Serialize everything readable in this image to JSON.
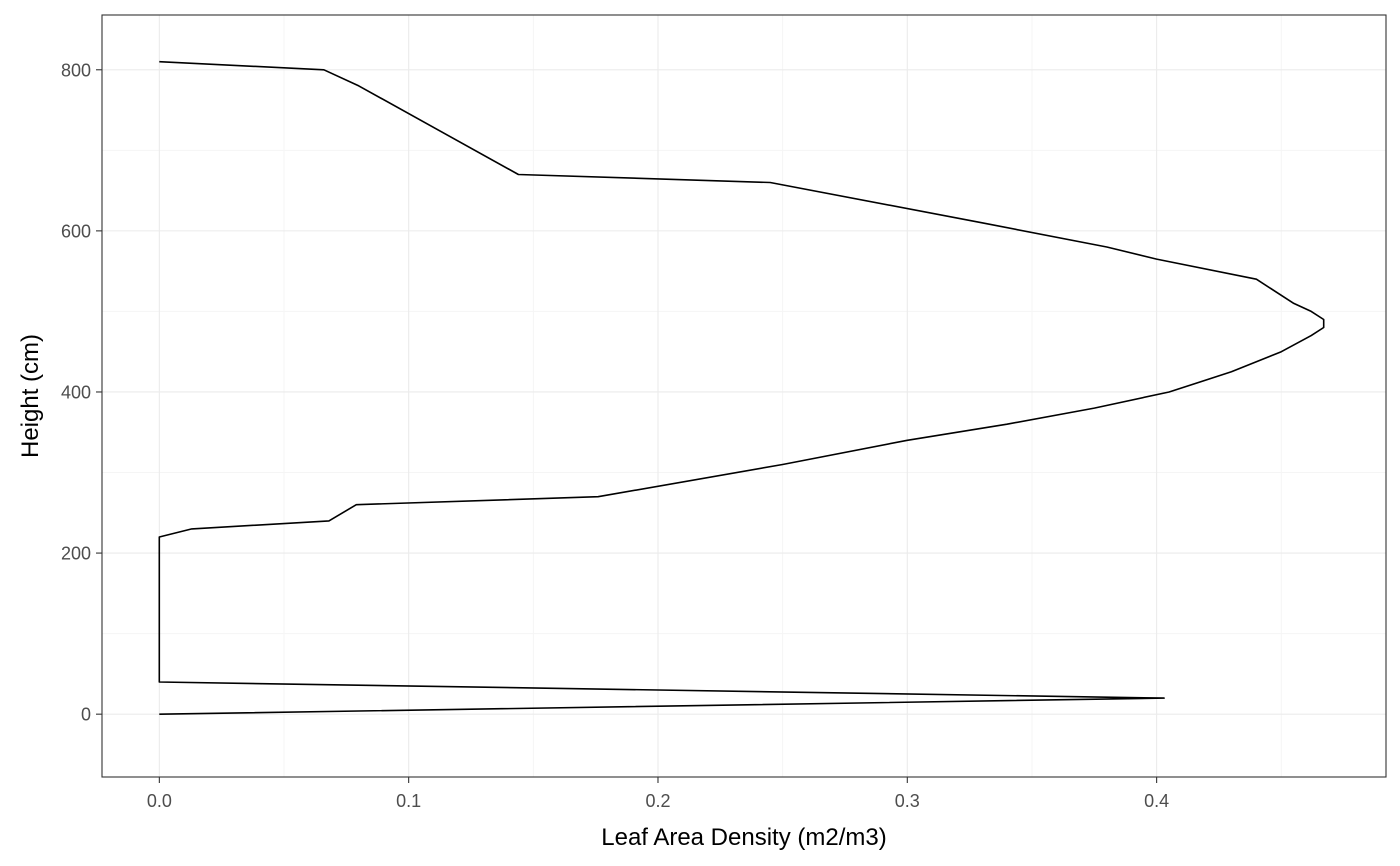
{
  "chart_data": {
    "type": "line",
    "title": "",
    "xlabel": "Leaf Area Density (m2/m3)",
    "ylabel": "Height (cm)",
    "xlim": [
      -0.023,
      0.492
    ],
    "ylim": [
      -78,
      868
    ],
    "x_ticks": [
      0.0,
      0.1,
      0.2,
      0.3,
      0.4
    ],
    "x_tick_labels": [
      "0.0",
      "0.1",
      "0.2",
      "0.3",
      "0.4"
    ],
    "y_ticks": [
      0,
      200,
      400,
      600,
      800
    ],
    "y_tick_labels": [
      "0",
      "200",
      "400",
      "600",
      "800"
    ],
    "grid": true,
    "legend": "none",
    "colors": {
      "line": "#000000",
      "grid_major": "#ebebeb",
      "grid_minor": "#f5f5f5",
      "panel_border": "#333333"
    },
    "series": [
      {
        "x": [
          0.0,
          0.403,
          0.0,
          0.0,
          0.013,
          0.068,
          0.079,
          0.176,
          0.25,
          0.3,
          0.34,
          0.375,
          0.405,
          0.43,
          0.45,
          0.462,
          0.467,
          0.467,
          0.462,
          0.455,
          0.44,
          0.4,
          0.38,
          0.33,
          0.245,
          0.144,
          0.08,
          0.066,
          0.0
        ],
        "y": [
          0,
          20,
          40,
          220,
          230,
          240,
          260,
          270,
          310,
          340,
          360,
          380,
          400,
          425,
          450,
          470,
          480,
          490,
          500,
          510,
          540,
          565,
          580,
          610,
          660,
          670,
          780,
          800,
          810
        ]
      }
    ]
  }
}
